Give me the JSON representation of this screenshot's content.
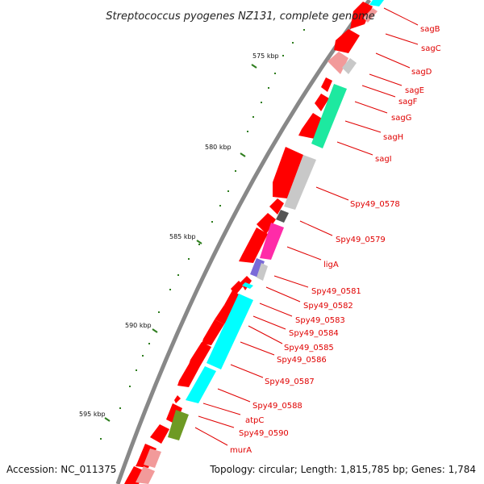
{
  "title": "Streptococcus pyogenes NZ131, complete genome",
  "accession": "Accession: NC_011375",
  "summary": "Topology: circular; Length: 1,815,785 bp; Genes: 1,784",
  "colors": {
    "backbone": "#888888",
    "cds": "#ff0000",
    "cds_light": "#f29a9a",
    "tick": "#2e7d1e",
    "label": "#e00000",
    "cyan": "#00ffff",
    "spring": "#1de9a0",
    "magenta": "#ff2ba8",
    "gray": "#c8c8c8",
    "dark": "#555555",
    "purple": "#7a6ad8",
    "olive": "#6e9a24"
  },
  "scale": {
    "labels": [
      "575 kbp",
      "580 kbp",
      "585 kbp",
      "590 kbp",
      "595 kbp"
    ]
  },
  "genes": [
    "sagB",
    "sagC",
    "sagD",
    "sagE",
    "sagF",
    "sagG",
    "sagH",
    "sagI",
    "Spy49_0578",
    "Spy49_0579",
    "ligA",
    "Spy49_0581",
    "Spy49_0582",
    "Spy49_0583",
    "Spy49_0584",
    "Spy49_0585",
    "Spy49_0586",
    "Spy49_0587",
    "Spy49_0588",
    "atpC",
    "Spy49_0590",
    "murA"
  ]
}
